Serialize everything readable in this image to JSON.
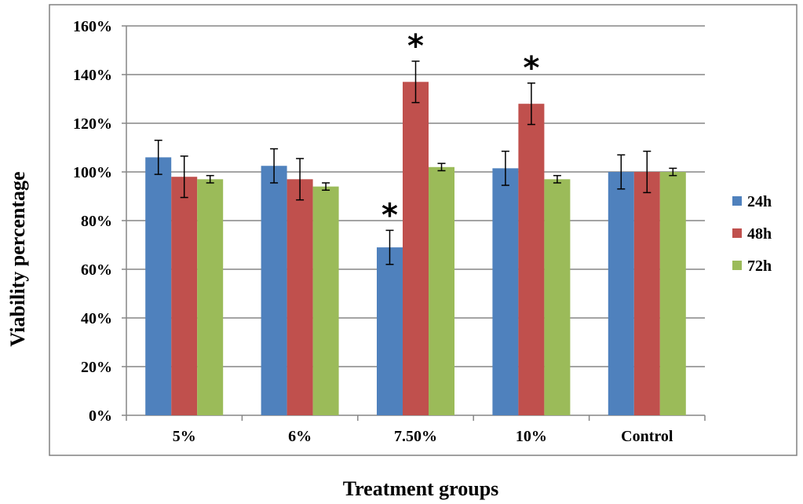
{
  "chart_data": {
    "type": "bar",
    "title": "",
    "xlabel": "Treatment groups",
    "ylabel": "Viability percentage",
    "ylim": [
      0,
      160
    ],
    "ytick_labels": [
      "0%",
      "20%",
      "40%",
      "60%",
      "80%",
      "100%",
      "120%",
      "140%",
      "160%"
    ],
    "categories": [
      "5%",
      "6%",
      "7.50%",
      "10%",
      "Control"
    ],
    "series": [
      {
        "name": "24h",
        "color": "#4F81BD",
        "values": [
          106,
          102.5,
          69,
          101.5,
          100
        ],
        "errors": [
          7,
          7,
          7,
          7,
          7
        ]
      },
      {
        "name": "48h",
        "color": "#C0504D",
        "values": [
          98,
          97,
          137,
          128,
          100
        ],
        "errors": [
          8.5,
          8.5,
          8.5,
          8.5,
          8.5
        ]
      },
      {
        "name": "72h",
        "color": "#9BBB59",
        "values": [
          97,
          94,
          102,
          97,
          100
        ],
        "errors": [
          1.5,
          1.5,
          1.5,
          1.5,
          1.5
        ]
      }
    ],
    "significance_marker": "*",
    "significant": [
      {
        "category": "7.50%",
        "series": "24h"
      },
      {
        "category": "7.50%",
        "series": "48h"
      },
      {
        "category": "10%",
        "series": "48h"
      }
    ],
    "grid": true,
    "legend_position": "right"
  }
}
